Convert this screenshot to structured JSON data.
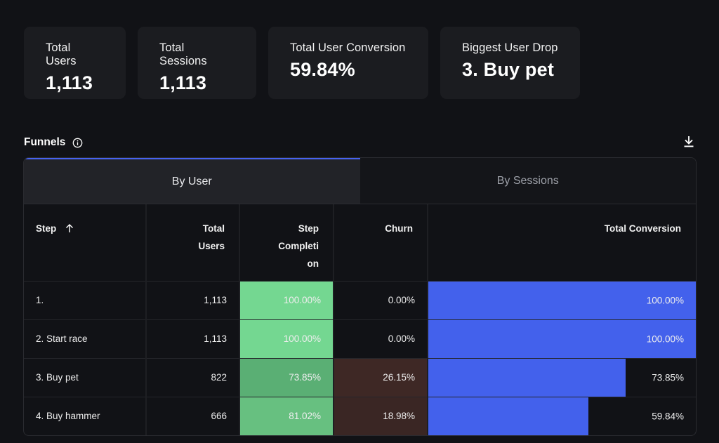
{
  "summary": [
    {
      "label": "Total Users",
      "value": "1,113"
    },
    {
      "label": "Total Sessions",
      "value": "1,113"
    },
    {
      "label": "Total User Conversion",
      "value": "59.84%"
    },
    {
      "label": "Biggest User Drop",
      "value": "3. Buy pet"
    }
  ],
  "funnels": {
    "title": "Funnels",
    "tabs": {
      "by_user": "By User",
      "by_sessions": "By Sessions"
    },
    "columns": {
      "step": "Step",
      "total_users_1": "Total",
      "total_users_2": "Users",
      "step_completion_1": "Step",
      "step_completion_2": "Completi",
      "step_completion_3": "on",
      "churn": "Churn",
      "total_conversion": "Total Conversion"
    },
    "rows": [
      {
        "step": "1.",
        "total_users": "1,113",
        "step_completion": "100.00%",
        "churn": "0.00%",
        "total_conversion": "100.00%"
      },
      {
        "step": "2. Start race",
        "total_users": "1,113",
        "step_completion": "100.00%",
        "churn": "0.00%",
        "total_conversion": "100.00%"
      },
      {
        "step": "3. Buy pet",
        "total_users": "822",
        "step_completion": "73.85%",
        "churn": "26.15%",
        "total_conversion": "73.85%"
      },
      {
        "step": "4. Buy hammer",
        "total_users": "666",
        "step_completion": "81.02%",
        "churn": "18.98%",
        "total_conversion": "59.84%"
      }
    ],
    "colors": {
      "completion_full": "#74d791",
      "completion_mid": "#5aaf74",
      "completion_low": "#67c080",
      "churn_high": "#3e2825",
      "churn_mid": "#3a2624",
      "conversion_bar": "#4361ec",
      "accent": "#4763f0"
    }
  }
}
